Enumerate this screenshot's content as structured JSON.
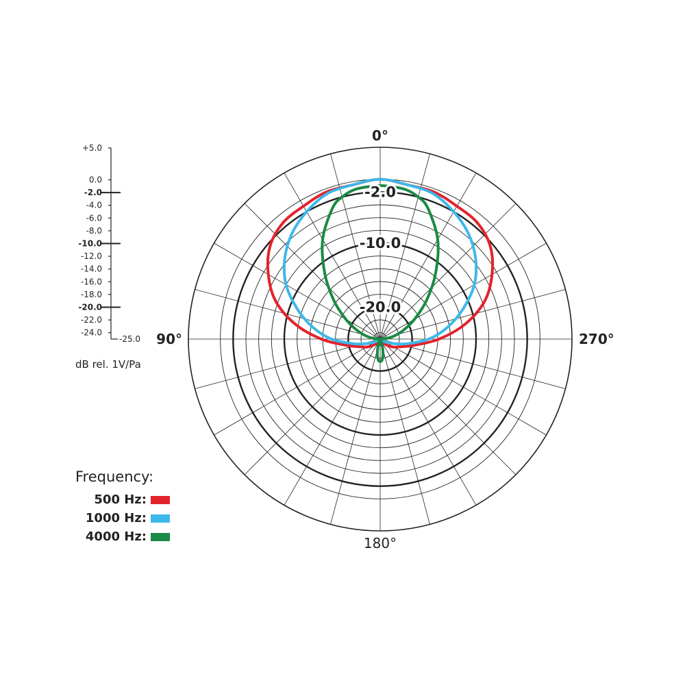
{
  "chart_data": {
    "type": "polar",
    "angle_labels": {
      "top": "0°",
      "left": "90°",
      "right": "270°",
      "bottom": "180°"
    },
    "radial_range_db": [
      -25,
      5
    ],
    "scale_ticks": [
      "+5.0",
      "0.0",
      "-2.0",
      "-4.0",
      "-6.0",
      "-8.0",
      "-10.0",
      "-12.0",
      "-14.0",
      "-16.0",
      "-18.0",
      "-20.0",
      "-22.0",
      "-24.0",
      "-25.0"
    ],
    "bold_rings": [
      "-2.0",
      "-10.0",
      "-20.0"
    ],
    "unit_label": "dB rel. 1V/Pa",
    "legend_title": "Frequency:",
    "series": [
      {
        "name": "500 Hz:",
        "color": "#e3232c",
        "angles_deg": [
          0,
          10,
          20,
          30,
          40,
          50,
          60,
          70,
          80,
          90,
          100,
          110,
          120,
          130,
          140,
          150,
          160,
          170,
          180
        ],
        "db": [
          0.0,
          -0.5,
          -0.5,
          -1.0,
          -1.3,
          -2.5,
          -4.8,
          -7.6,
          -11.5,
          -15.8,
          -19.5,
          -21.5,
          -22.5,
          -23.4,
          -24.2,
          -24.7,
          -25.0,
          -25.0,
          -25.0
        ]
      },
      {
        "name": "1000 Hz:",
        "color": "#3db8ea",
        "angles_deg": [
          0,
          10,
          20,
          30,
          40,
          50,
          60,
          70,
          80,
          90,
          100,
          110,
          120,
          130,
          140,
          150,
          160,
          170,
          180
        ],
        "db": [
          0.0,
          -0.5,
          -0.8,
          -2.0,
          -3.5,
          -5.5,
          -8.0,
          -11.2,
          -14.3,
          -17.4,
          -20.8,
          -23.0,
          -24.2,
          -24.8,
          -25.0,
          -25.0,
          -25.0,
          -25.0,
          -25.0
        ]
      },
      {
        "name": "4000 Hz:",
        "color": "#1a8a44",
        "angles_deg": [
          0,
          5,
          10,
          15,
          20,
          30,
          40,
          50,
          60,
          70,
          80,
          90,
          100,
          110,
          120,
          130,
          140,
          150,
          155,
          160,
          165,
          170,
          175,
          180
        ],
        "db": [
          -1.0,
          -1.1,
          -1.3,
          -2.0,
          -3.2,
          -7.0,
          -11.5,
          -15.5,
          -18.8,
          -21.3,
          -23.2,
          -24.8,
          -25.0,
          -25.0,
          -25.0,
          -25.0,
          -25.0,
          -25.0,
          -24.9,
          -24.5,
          -23.5,
          -22.5,
          -21.7,
          -21.5
        ]
      }
    ]
  }
}
